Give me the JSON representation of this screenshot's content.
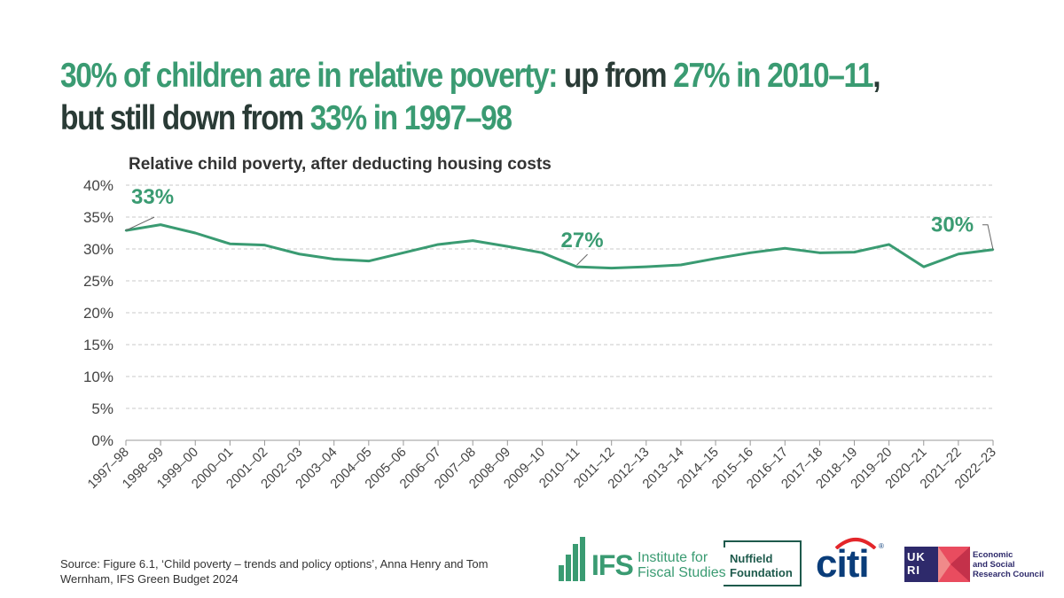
{
  "headline": {
    "part1": "30% of children are in relative poverty:",
    "part2": " up from ",
    "part3": "27% in 2010–11",
    "part4": ", but still down from ",
    "part5": "33% in 1997–98"
  },
  "colors": {
    "accent": "#3a9b72",
    "text_dark": "#2a3b36",
    "grid": "#c8c8c8"
  },
  "chart_data": {
    "type": "line",
    "title": "Relative child poverty, after deducting housing costs",
    "xlabel": "",
    "ylabel": "",
    "ylim": [
      0,
      40
    ],
    "y_ticks": [
      "0%",
      "5%",
      "10%",
      "15%",
      "20%",
      "25%",
      "30%",
      "35%",
      "40%"
    ],
    "y_tick_values": [
      0,
      5,
      10,
      15,
      20,
      25,
      30,
      35,
      40
    ],
    "grid": true,
    "categories": [
      "1997–98",
      "1998–99",
      "1999–00",
      "2000–01",
      "2001–02",
      "2002–03",
      "2003–04",
      "2004–05",
      "2005–06",
      "2006–07",
      "2007–08",
      "2008–09",
      "2009–10",
      "2010–11",
      "2011–12",
      "2012–13",
      "2013–14",
      "2014–15",
      "2015–16",
      "2016–17",
      "2017–18",
      "2018–19",
      "2019–20",
      "2020–21",
      "2021–22",
      "2022–23"
    ],
    "series": [
      {
        "values": [
          32.9,
          33.8,
          32.5,
          30.8,
          30.6,
          29.2,
          28.4,
          28.1,
          29.4,
          30.7,
          31.3,
          30.4,
          29.4,
          27.2,
          27.0,
          27.2,
          27.5,
          28.5,
          29.4,
          30.1,
          29.4,
          29.5,
          30.7,
          27.2,
          29.2,
          29.9
        ]
      }
    ],
    "annotations": [
      {
        "text": "33%",
        "index": 0
      },
      {
        "text": "27%",
        "index": 13
      },
      {
        "text": "30%",
        "index": 25
      }
    ]
  },
  "source": "Source: Figure 6.1, ‘Child poverty – trends and policy options’, Anna Henry and Tom Wernham, IFS Green Budget 2024",
  "logos": {
    "ifs_mark": "IFS",
    "ifs_name_line1": "Institute for",
    "ifs_name_line2": "Fiscal Studies",
    "nuffield_line1": "Nuffield",
    "nuffield_line2": "Foundation",
    "citi": "citi",
    "citi_reg": "®",
    "ukri": "UK RI",
    "esrc_line1": "Economic",
    "esrc_line2": "and Social",
    "esrc_line3": "Research Council"
  }
}
